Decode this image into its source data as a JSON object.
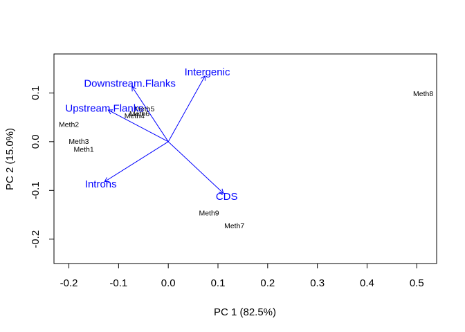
{
  "chart_data": {
    "type": "scatter",
    "xlabel": "PC 1 (82.5%)",
    "ylabel": "PC 2 (15.0%)",
    "xlim": [
      -0.23,
      0.54
    ],
    "ylim": [
      -0.25,
      0.18
    ],
    "x_ticks": [
      -0.2,
      -0.1,
      0.0,
      0.1,
      0.2,
      0.3,
      0.4,
      0.5
    ],
    "x_tick_labels": [
      "-0.2",
      "-0.1",
      "0.0",
      "0.1",
      "0.2",
      "0.3",
      "0.4",
      "0.5"
    ],
    "y_ticks": [
      0.1,
      0.0,
      -0.1,
      -0.2
    ],
    "y_tick_labels": [
      "0.1",
      "0.0",
      "-0.1",
      "-0.2"
    ],
    "grid": false,
    "points": [
      {
        "label": "Meth1",
        "x": -0.17,
        "y": -0.015
      },
      {
        "label": "Meth2",
        "x": -0.2,
        "y": 0.036
      },
      {
        "label": "Meth3",
        "x": -0.18,
        "y": 0.001
      },
      {
        "label": "Meth4",
        "x": -0.068,
        "y": 0.054
      },
      {
        "label": "Meth5",
        "x": -0.048,
        "y": 0.068
      },
      {
        "label": "Meth6",
        "x": -0.058,
        "y": 0.058
      },
      {
        "label": "Meth7",
        "x": 0.133,
        "y": -0.172
      },
      {
        "label": "Meth8",
        "x": 0.513,
        "y": 0.099
      },
      {
        "label": "Meth9",
        "x": 0.082,
        "y": -0.146
      }
    ],
    "loadings": [
      {
        "label": "Intergenic",
        "x": 0.074,
        "y": 0.135
      },
      {
        "label": "Downstream.Flanks",
        "x": -0.073,
        "y": 0.113
      },
      {
        "label": "Upstream.Flanks",
        "x": -0.121,
        "y": 0.065
      },
      {
        "label": "Introns",
        "x": -0.128,
        "y": -0.082
      },
      {
        "label": "CDS",
        "x": 0.111,
        "y": -0.106
      }
    ],
    "colors": {
      "points": "#000000",
      "loadings": "#0000ff",
      "axes": "#000000"
    }
  }
}
